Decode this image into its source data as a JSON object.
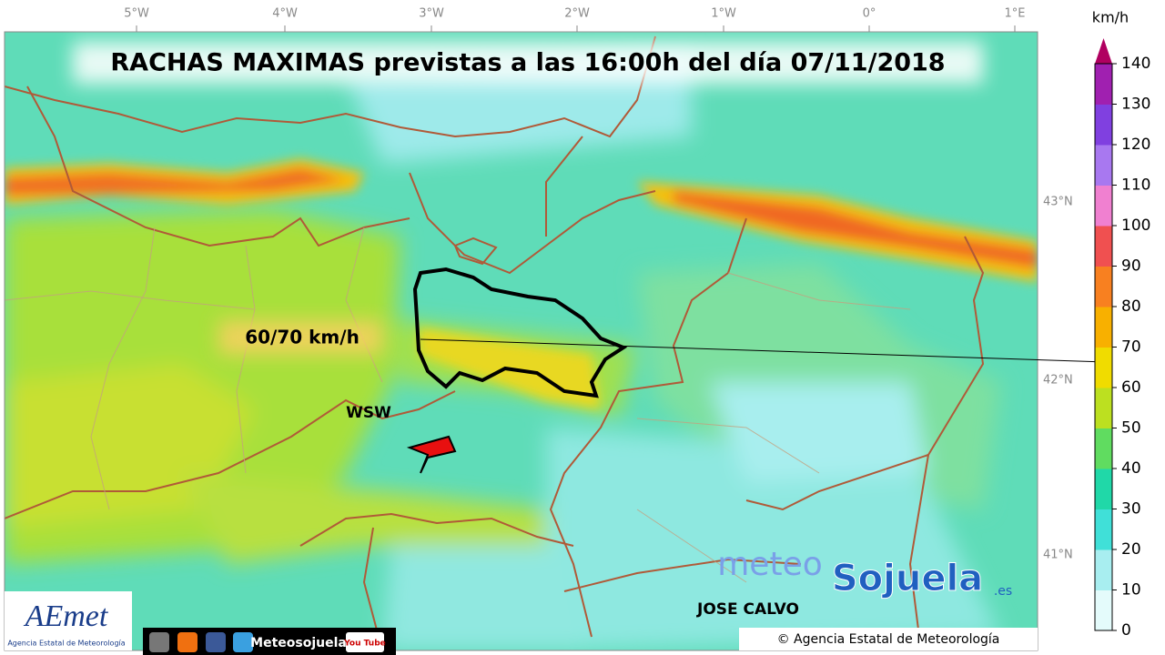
{
  "title": "RACHAS MAXIMAS previstas a las 16:00h del día 07/11/2018",
  "longitudes": [
    "5°W",
    "4°W",
    "3°W",
    "2°W",
    "1°W",
    "0°",
    "1°E"
  ],
  "latitudes": [
    "43°N",
    "42°N",
    "41°N"
  ],
  "colorbar": {
    "unit": "km/h",
    "ticks": [
      0,
      10,
      20,
      30,
      40,
      50,
      60,
      70,
      80,
      90,
      100,
      110,
      120,
      130,
      140
    ]
  },
  "annotations": {
    "gust": "60/70 km/h",
    "direction": "WSW",
    "author": "JOSE CALVO",
    "copyright": "© Agencia Estatal de Meteorología"
  },
  "logos": {
    "aemet": "AEmet",
    "aemet_sub": "Agencia Estatal de Meteorología",
    "meteo": "meteo",
    "sojuela": "Sojuela",
    "domain": ".es",
    "social": "Meteosojuela",
    "youtube": "You Tube"
  }
}
